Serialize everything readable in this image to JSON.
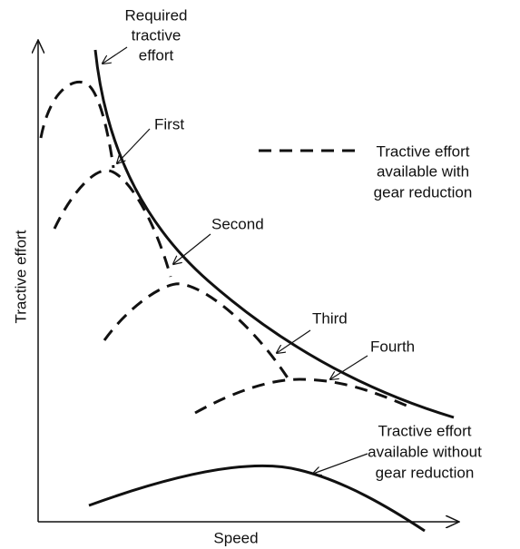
{
  "axes": {
    "y_label": "Tractive effort",
    "x_label": "Speed"
  },
  "annotations": {
    "required": [
      "Required",
      "tractive",
      "effort"
    ],
    "gears": [
      "First",
      "Second",
      "Third",
      "Fourth"
    ],
    "with_gear": [
      "Tractive effort",
      "available with",
      "gear reduction"
    ],
    "without_gear": [
      "Tractive effort",
      "available without",
      "gear reduction"
    ]
  }
}
